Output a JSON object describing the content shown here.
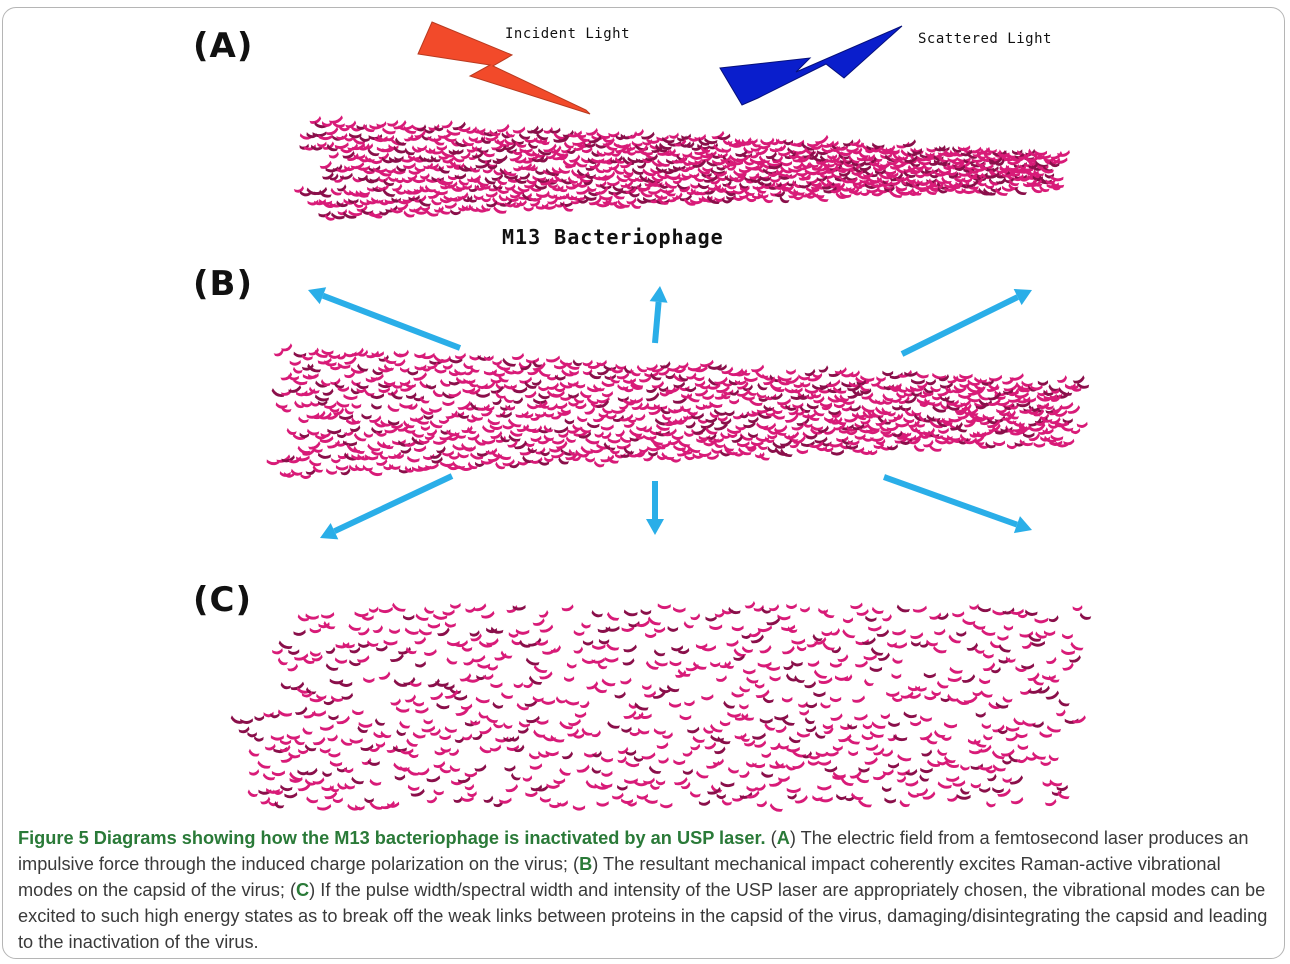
{
  "figure": {
    "panels": [
      {
        "label": "(A)",
        "name": "M13 Bacteriophage"
      },
      {
        "label": "(B)"
      },
      {
        "label": "(C)"
      }
    ],
    "incident_light": "Incident Light",
    "scattered_light": "Scattered Light",
    "colors": {
      "protein": "#d81b78",
      "protein_dark": "#8a0f4a",
      "incident": "#f24a2a",
      "scattered": "#0a1ecc",
      "arrow": "#2aaee8"
    }
  },
  "caption": {
    "title": "Figure 5 Diagrams showing how the M13 bacteriophage is inactivated by an USP laser.",
    "parts": [
      {
        "open": " (",
        "letter": "A",
        "text": ") The electric field from a femtosecond laser produces an impulsive force through the induced charge polarization on the virus; "
      },
      {
        "open": "(",
        "letter": "B",
        "text": ") The resultant mechanical impact coherently excites Raman-active vibrational modes on the capsid of the virus; "
      },
      {
        "open": "(",
        "letter": "C",
        "text": ") If the pulse width/spectral width and intensity of the USP laser are appropriately chosen, the vibrational modes can be excited to such high energy states as to break off the weak links between proteins in the capsid of the virus, damaging/disintegrating the capsid and leading to the inactivation of the virus."
      }
    ]
  }
}
